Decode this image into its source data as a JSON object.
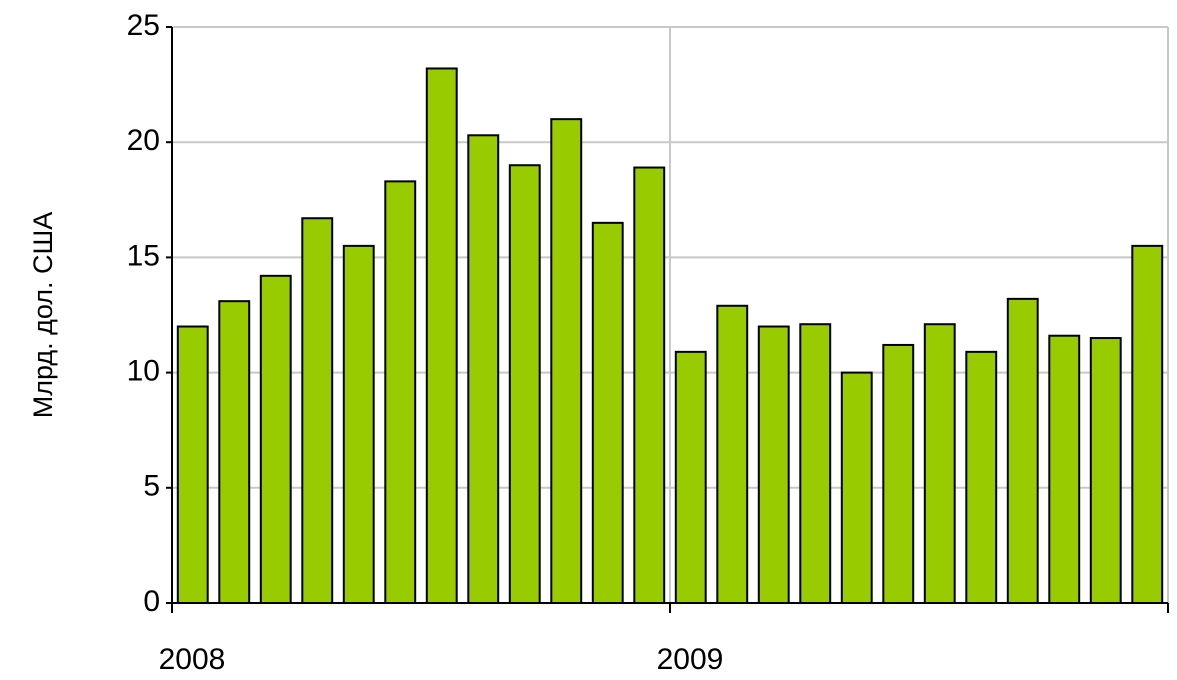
{
  "chart_data": {
    "type": "bar",
    "y_label": "Млрд. дол. США",
    "categories": [
      "2008",
      null,
      null,
      null,
      null,
      null,
      null,
      null,
      null,
      null,
      null,
      null,
      "2009",
      null,
      null,
      null,
      null,
      null,
      null,
      null,
      null,
      null,
      null,
      null
    ],
    "values": [
      12.0,
      13.1,
      14.2,
      16.7,
      15.5,
      18.3,
      23.2,
      20.3,
      19.0,
      21.0,
      16.5,
      18.9,
      10.9,
      12.9,
      12.0,
      12.1,
      10.0,
      11.2,
      12.1,
      10.9,
      13.2,
      11.6,
      11.5,
      15.5
    ],
    "color": "#99cc00",
    "ylim": [
      0,
      25
    ],
    "yticks": [
      0,
      5,
      10,
      15,
      20,
      25
    ],
    "grid": true
  }
}
